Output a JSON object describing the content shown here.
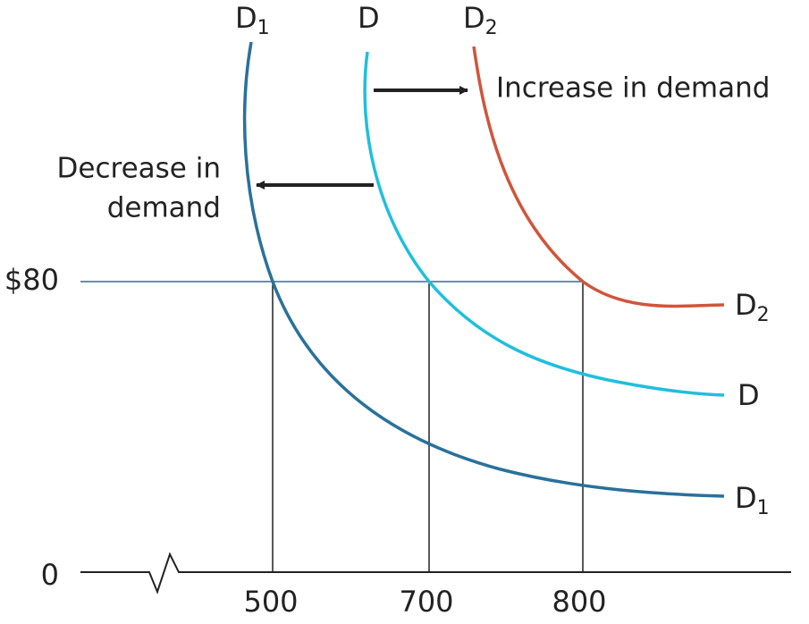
{
  "curves": {
    "top": [
      {
        "name": "D",
        "sub": "1"
      },
      {
        "name": "D"
      },
      {
        "name": "D",
        "sub": "2"
      }
    ],
    "right": [
      {
        "name": "D",
        "sub": "2"
      },
      {
        "name": "D"
      },
      {
        "name": "D",
        "sub": "1"
      }
    ]
  },
  "annotations": {
    "increase": "Increase in demand",
    "decrease": [
      "Decrease in",
      "demand"
    ]
  },
  "y_axis": {
    "price": "$80",
    "origin": "0"
  },
  "x_axis": {
    "ticks": [
      "500",
      "700",
      "800"
    ]
  }
}
